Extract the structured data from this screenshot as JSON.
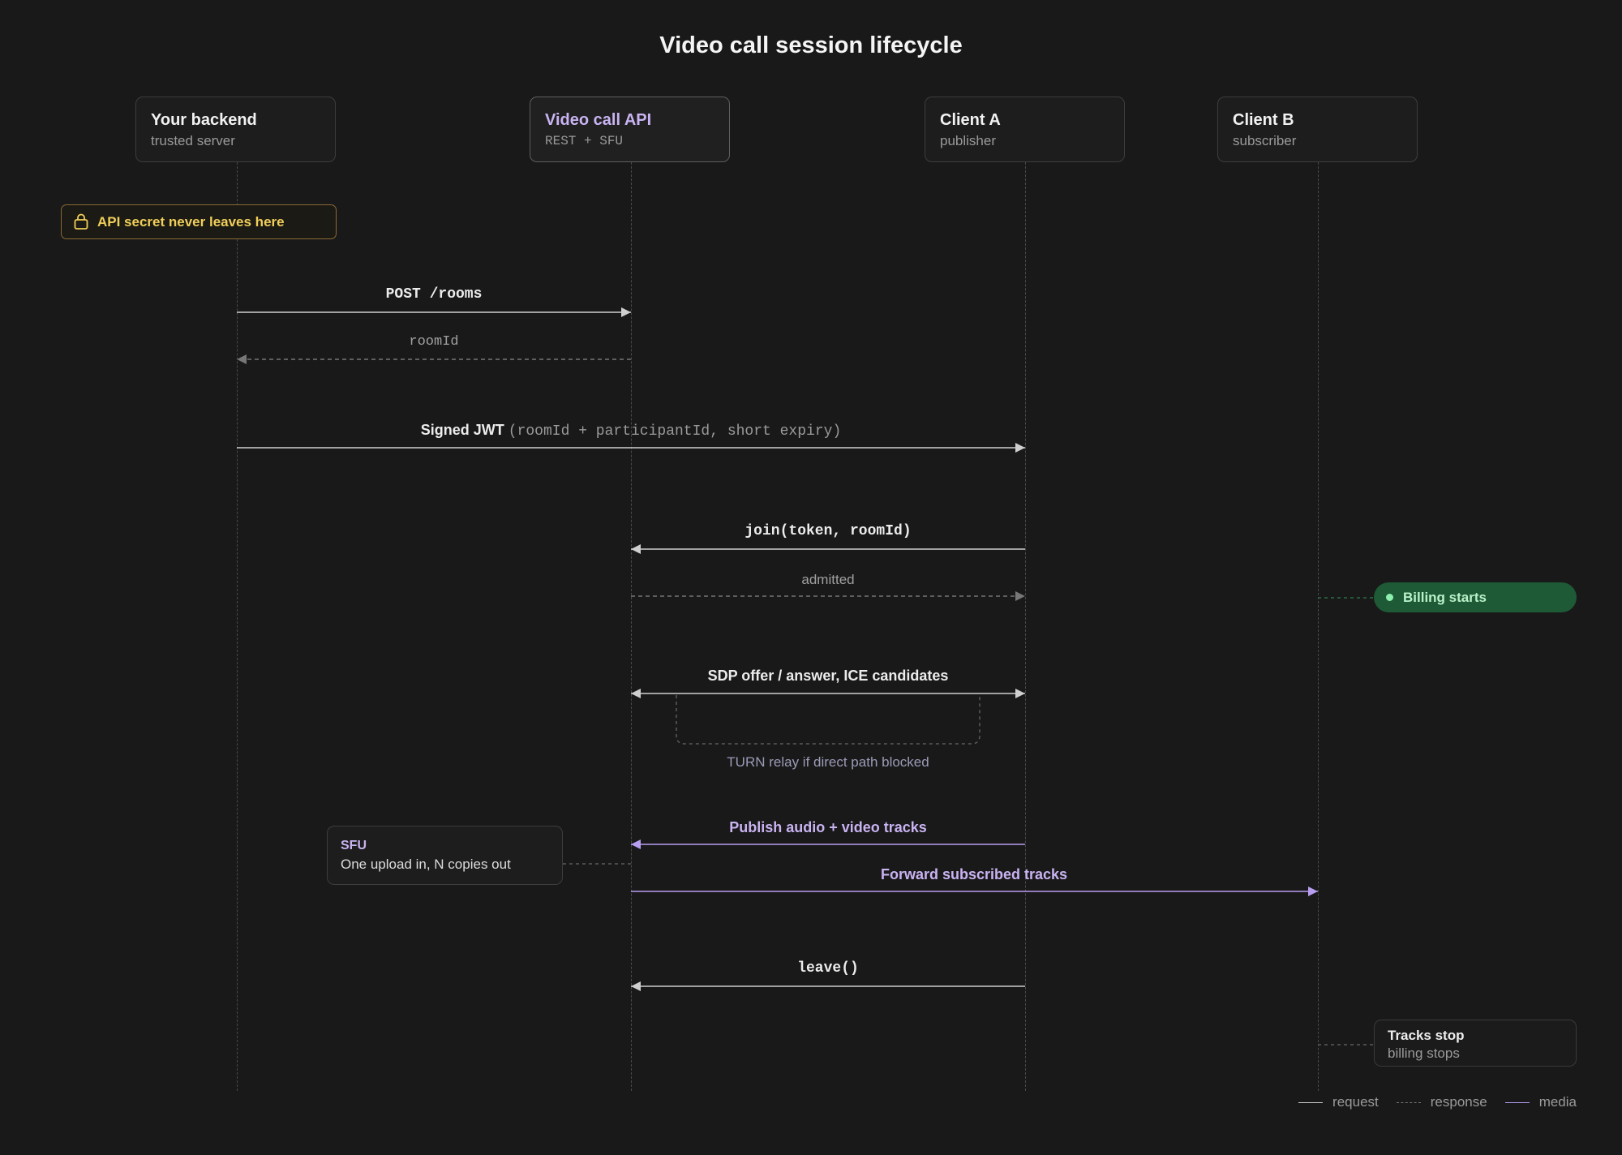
{
  "title": "Video call session lifecycle",
  "actors": [
    {
      "name": "Your backend",
      "subtitle": "trusted server"
    },
    {
      "name": "Video call API",
      "subtitle": "REST + SFU"
    },
    {
      "name": "Client A",
      "subtitle": "publisher"
    },
    {
      "name": "Client B",
      "subtitle": "subscriber"
    }
  ],
  "notes": {
    "secret": "API secret never leaves here",
    "billing_start": "Billing starts",
    "sfu_title": "SFU",
    "sfu_desc": "One upload in, N copies out",
    "tracks_stop_title": "Tracks stop",
    "tracks_stop_sub": "billing stops",
    "turn": "TURN relay if direct path blocked"
  },
  "messages": {
    "post_rooms": "POST /rooms",
    "room_id": "roomId",
    "jwt_label": "Signed JWT",
    "jwt_detail": "(roomId + participantId, short expiry)",
    "join": "join(token, roomId)",
    "admitted": "admitted",
    "sdp": "SDP offer / answer, ICE candidates",
    "publish": "Publish audio + video tracks",
    "forward": "Forward subscribed tracks",
    "leave": "leave()"
  },
  "legend": {
    "request": "request",
    "response": "response",
    "media": "media"
  },
  "colors": {
    "background": "#191919",
    "request": "#cfcfcf",
    "response": "#777777",
    "media": "#b79ef0",
    "billing": "#1d5a35",
    "warning": "#f0cf5a"
  }
}
